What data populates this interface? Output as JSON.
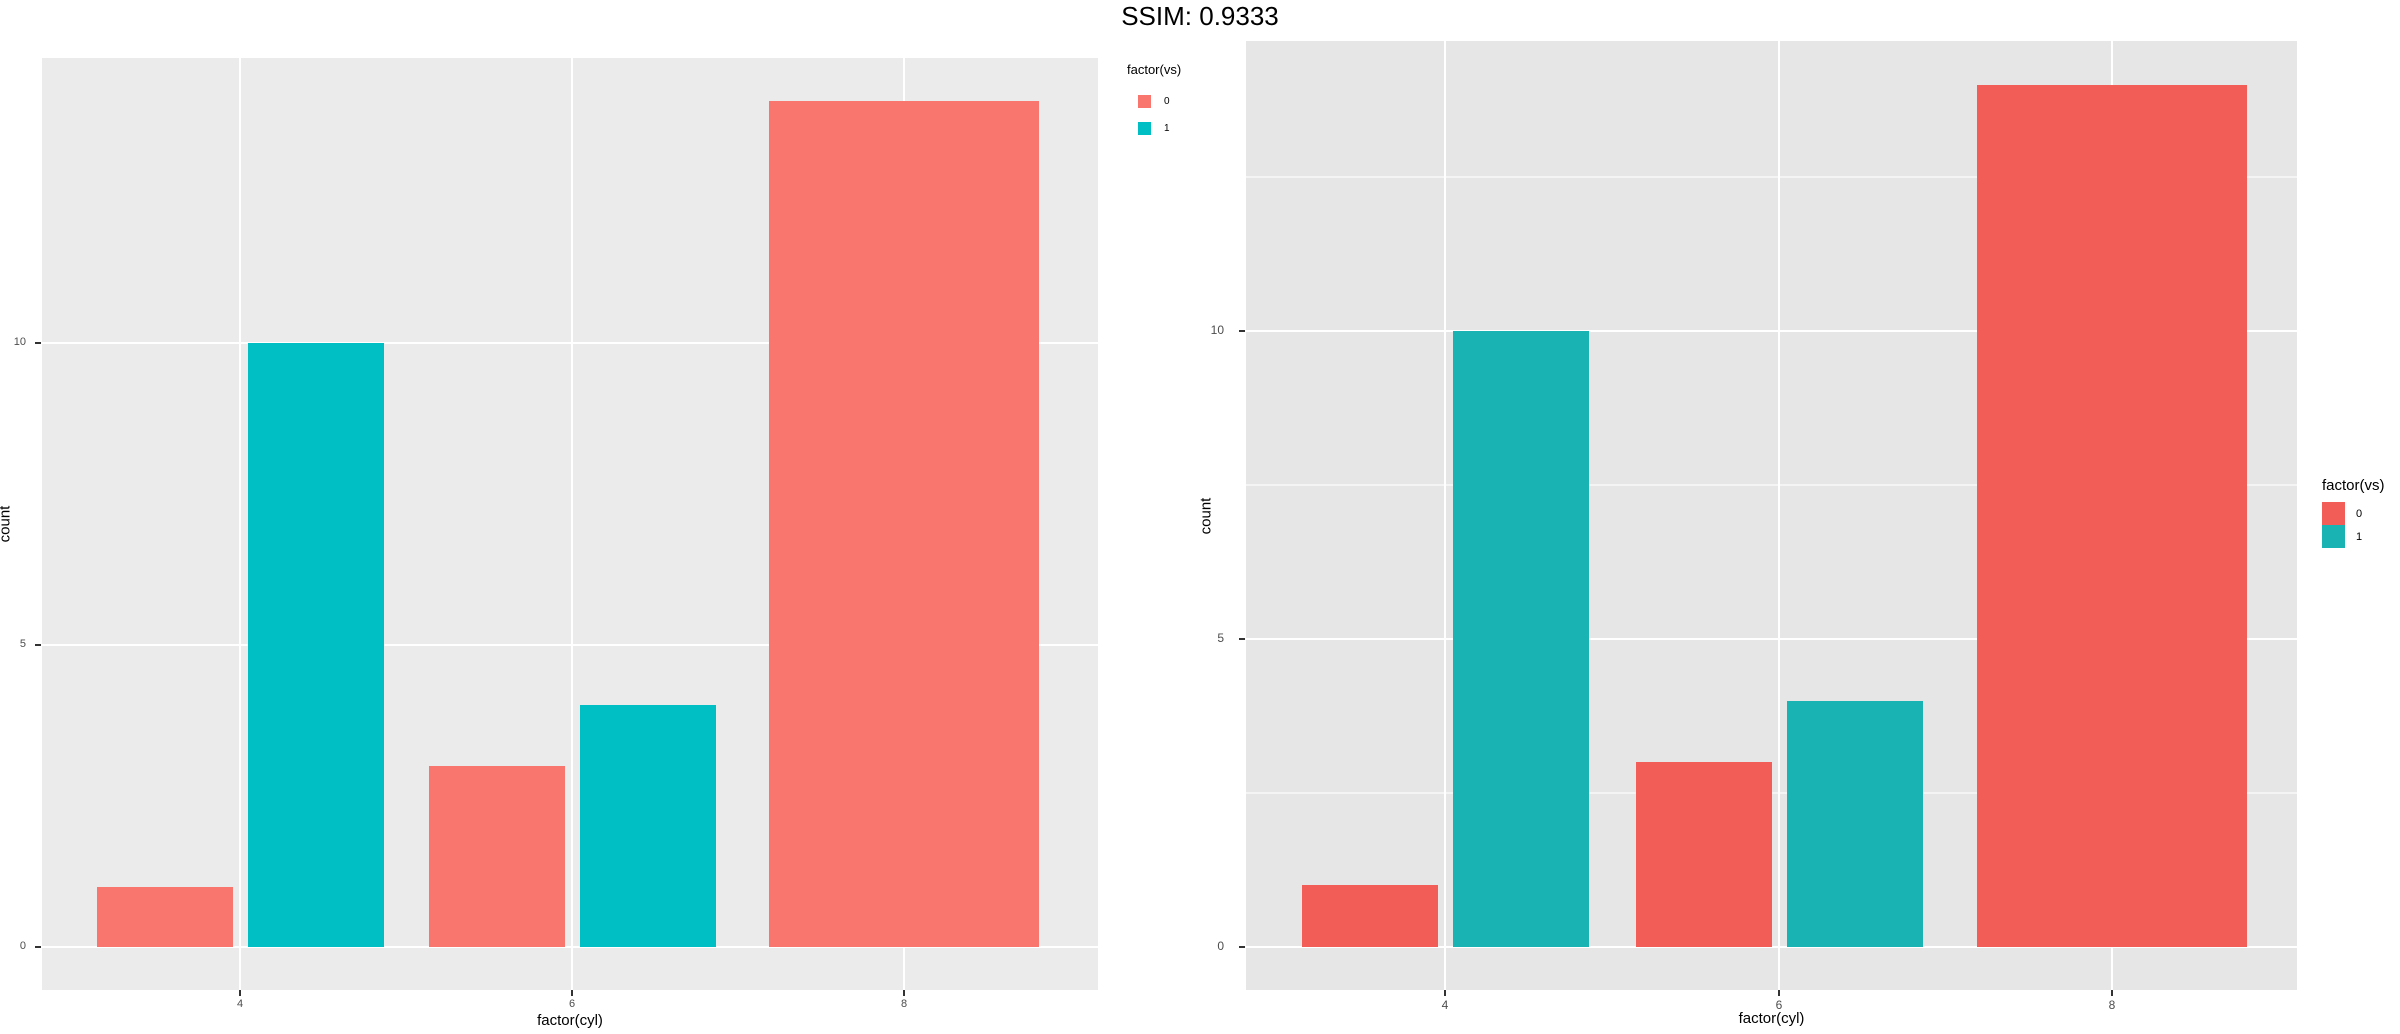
{
  "page": {
    "title": "SSIM: 0.9333"
  },
  "chart_data": [
    {
      "id": "left-plot",
      "type": "bar",
      "title": "",
      "xlabel": "factor(cyl)",
      "ylabel": "count",
      "categories": [
        "4",
        "6",
        "8"
      ],
      "series": [
        {
          "name": "0",
          "values": [
            1,
            3,
            14
          ],
          "color": "#F8766D"
        },
        {
          "name": "1",
          "values": [
            10,
            4,
            0
          ],
          "color": "#00BFC4"
        }
      ],
      "legend_title": "factor(vs)",
      "legend_position": "top-right-outside",
      "y_tick_labels": [
        "0",
        "5",
        "10"
      ],
      "y_tick_values": [
        0,
        5,
        10
      ],
      "y_minor_values": [],
      "ylim": [
        -0.7,
        14.7
      ],
      "grid": "major-only",
      "panel_bg": "#EBEBEB",
      "grid_color": "#FFFFFF"
    },
    {
      "id": "right-plot",
      "type": "bar",
      "title": "",
      "xlabel": "factor(cyl)",
      "ylabel": "count",
      "categories": [
        "4",
        "6",
        "8"
      ],
      "series": [
        {
          "name": "0",
          "values": [
            1,
            3,
            14
          ],
          "color": "#F25D58"
        },
        {
          "name": "1",
          "values": [
            10,
            4,
            0
          ],
          "color": "#1AB3B3"
        }
      ],
      "legend_title": "factor(vs)",
      "legend_position": "right-middle-outside",
      "y_tick_labels": [
        "0",
        "5",
        "10"
      ],
      "y_tick_values": [
        0,
        5,
        10
      ],
      "y_minor_values": [
        2.5,
        7.5,
        12.5
      ],
      "ylim": [
        -0.7,
        14.7
      ],
      "grid": "major-and-minor",
      "panel_bg": "#E6E6E6",
      "grid_color": "#FFFFFF"
    }
  ]
}
